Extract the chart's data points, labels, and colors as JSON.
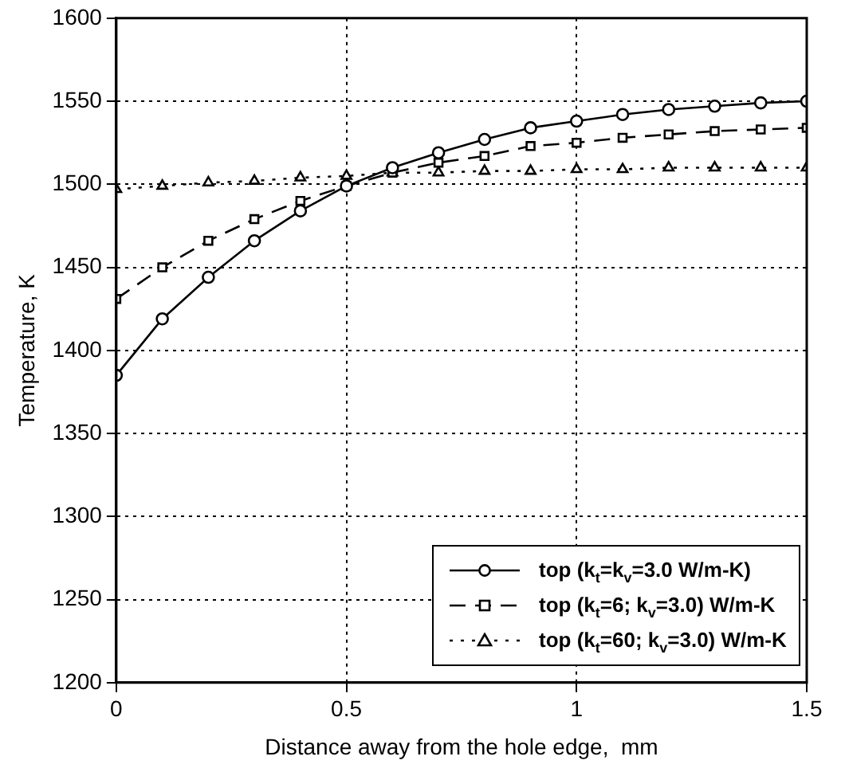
{
  "chart_data": {
    "type": "line",
    "xlabel": "Distance away from the hole edge,  mm",
    "ylabel": "Temperature, K",
    "x": [
      0,
      0.1,
      0.2,
      0.3,
      0.4,
      0.5,
      0.6,
      0.7,
      0.8,
      0.9,
      1.0,
      1.1,
      1.2,
      1.3,
      1.4,
      1.5
    ],
    "xlim": [
      0,
      1.5
    ],
    "xticks": [
      0,
      0.5,
      1,
      1.5
    ],
    "ylim": [
      1200,
      1600
    ],
    "yticks": [
      1200,
      1250,
      1300,
      1350,
      1400,
      1450,
      1500,
      1550,
      1600
    ],
    "grid": true,
    "legend": "bottom right",
    "series": [
      {
        "name": "top  (k$_{t}$=k$_{v}$=3.0 W/m-K)",
        "color": "#000000",
        "marker": "circle",
        "line_style": "solid",
        "values": [
          1385,
          1419,
          1444,
          1466,
          1484,
          1499,
          1510,
          1519,
          1527,
          1534,
          1538,
          1542,
          1545,
          1547,
          1549,
          1550
        ]
      },
      {
        "name": "top  (k$_{t}$=6; k$_{v}$=3.0)  W/m-K",
        "color": "#000000",
        "marker": "square",
        "line_style": "dashed",
        "values": [
          1431,
          1450,
          1466,
          1479,
          1490,
          1499,
          1507,
          1513,
          1517,
          1523,
          1525,
          1528,
          1530,
          1532,
          1533,
          1534
        ]
      },
      {
        "name": "top  (k$_{t}$=60; k$_{v}$=3.0)  W/m-K",
        "color": "#000000",
        "marker": "triangle",
        "line_style": "dotted",
        "values": [
          1497,
          1499,
          1501,
          1502,
          1504,
          1505,
          1507,
          1507,
          1508,
          1508,
          1509,
          1509,
          1510,
          1510,
          1510,
          1510
        ]
      }
    ]
  }
}
